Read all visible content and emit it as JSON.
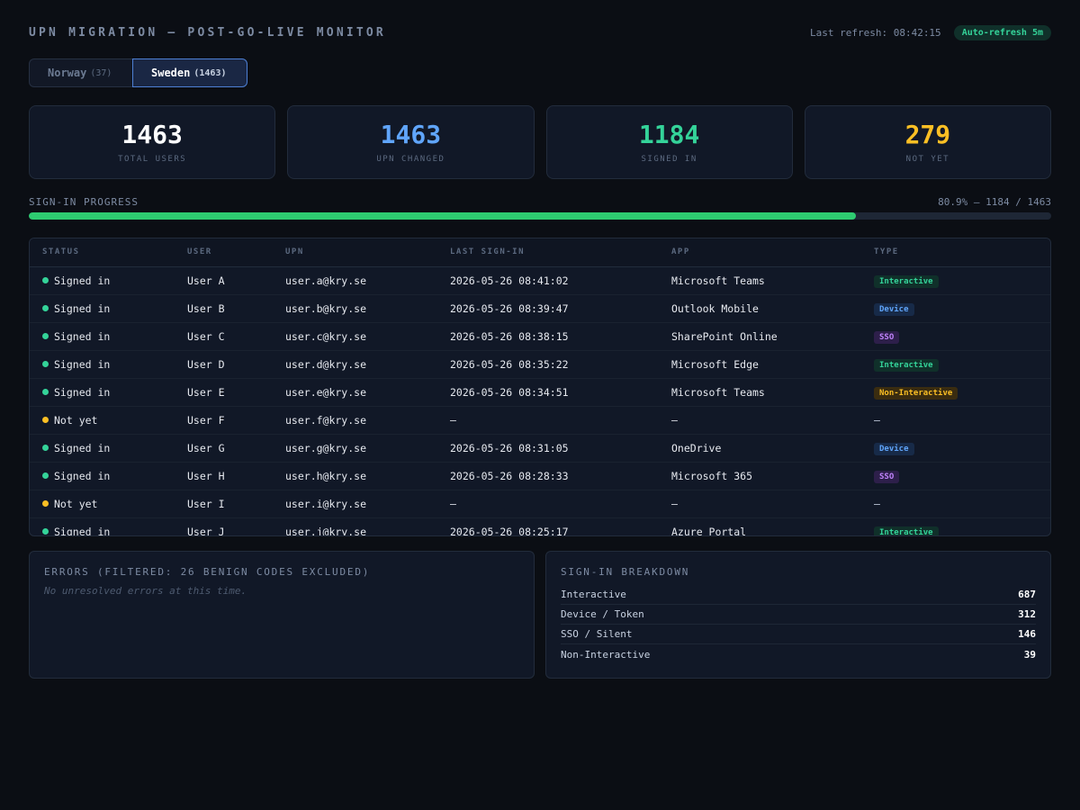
{
  "header": {
    "title": "UPN MIGRATION — POST-GO-LIVE MONITOR",
    "last_refresh": "Last refresh: 08:42:15",
    "auto_refresh": "Auto-refresh 5m"
  },
  "tabs": [
    {
      "label": "Norway",
      "count": "(37)",
      "active": false
    },
    {
      "label": "Sweden",
      "count": "(1463)",
      "active": true
    }
  ],
  "stats": [
    {
      "value": "1463",
      "label": "TOTAL USERS",
      "color": "#ffffff"
    },
    {
      "value": "1463",
      "label": "UPN CHANGED",
      "color": "#60a5fa"
    },
    {
      "value": "1184",
      "label": "SIGNED IN",
      "color": "#34d399"
    },
    {
      "value": "279",
      "label": "NOT YET",
      "color": "#fbbf24"
    }
  ],
  "progress": {
    "label": "SIGN-IN PROGRESS",
    "summary": "80.9% — 1184 / 1463",
    "fraction": 0.809
  },
  "table": {
    "headers": [
      "STATUS",
      "USER",
      "UPN",
      "LAST SIGN-IN",
      "APP",
      "TYPE"
    ],
    "rows": [
      {
        "status": "Signed in",
        "status_color": "#34d399",
        "user": "User A",
        "upn": "user.a@kry.se",
        "last": "2026-05-26 08:41:02",
        "app": "Microsoft Teams",
        "type": "Interactive"
      },
      {
        "status": "Signed in",
        "status_color": "#34d399",
        "user": "User B",
        "upn": "user.b@kry.se",
        "last": "2026-05-26 08:39:47",
        "app": "Outlook Mobile",
        "type": "Device"
      },
      {
        "status": "Signed in",
        "status_color": "#34d399",
        "user": "User C",
        "upn": "user.c@kry.se",
        "last": "2026-05-26 08:38:15",
        "app": "SharePoint Online",
        "type": "SSO"
      },
      {
        "status": "Signed in",
        "status_color": "#34d399",
        "user": "User D",
        "upn": "user.d@kry.se",
        "last": "2026-05-26 08:35:22",
        "app": "Microsoft Edge",
        "type": "Interactive"
      },
      {
        "status": "Signed in",
        "status_color": "#34d399",
        "user": "User E",
        "upn": "user.e@kry.se",
        "last": "2026-05-26 08:34:51",
        "app": "Microsoft Teams",
        "type": "Non-Interactive"
      },
      {
        "status": "Not yet",
        "status_color": "#fbbf24",
        "user": "User F",
        "upn": "user.f@kry.se",
        "last": "—",
        "app": "—",
        "type": "—"
      },
      {
        "status": "Signed in",
        "status_color": "#34d399",
        "user": "User G",
        "upn": "user.g@kry.se",
        "last": "2026-05-26 08:31:05",
        "app": "OneDrive",
        "type": "Device"
      },
      {
        "status": "Signed in",
        "status_color": "#34d399",
        "user": "User H",
        "upn": "user.h@kry.se",
        "last": "2026-05-26 08:28:33",
        "app": "Microsoft 365",
        "type": "SSO"
      },
      {
        "status": "Not yet",
        "status_color": "#fbbf24",
        "user": "User I",
        "upn": "user.i@kry.se",
        "last": "—",
        "app": "—",
        "type": "—"
      },
      {
        "status": "Signed in",
        "status_color": "#34d399",
        "user": "User J",
        "upn": "user.j@kry.se",
        "last": "2026-05-26 08:25:17",
        "app": "Azure Portal",
        "type": "Interactive"
      }
    ]
  },
  "type_styles": {
    "Interactive": {
      "color": "#34d399",
      "bg": "#10302a"
    },
    "Device": {
      "color": "#60a5fa",
      "bg": "#172a48"
    },
    "SSO": {
      "color": "#c084fc",
      "bg": "#2d1f4a"
    },
    "Non-Interactive": {
      "color": "#fbbf24",
      "bg": "#3a2c10"
    }
  },
  "errors": {
    "title": "ERRORS (FILTERED: 26 BENIGN CODES EXCLUDED)",
    "message": "No unresolved errors at this time."
  },
  "breakdown": {
    "title": "SIGN-IN BREAKDOWN",
    "items": [
      {
        "label": "Interactive",
        "value": "687"
      },
      {
        "label": "Device / Token",
        "value": "312"
      },
      {
        "label": "SSO / Silent",
        "value": "146"
      },
      {
        "label": "Non-Interactive",
        "value": "39"
      }
    ]
  }
}
